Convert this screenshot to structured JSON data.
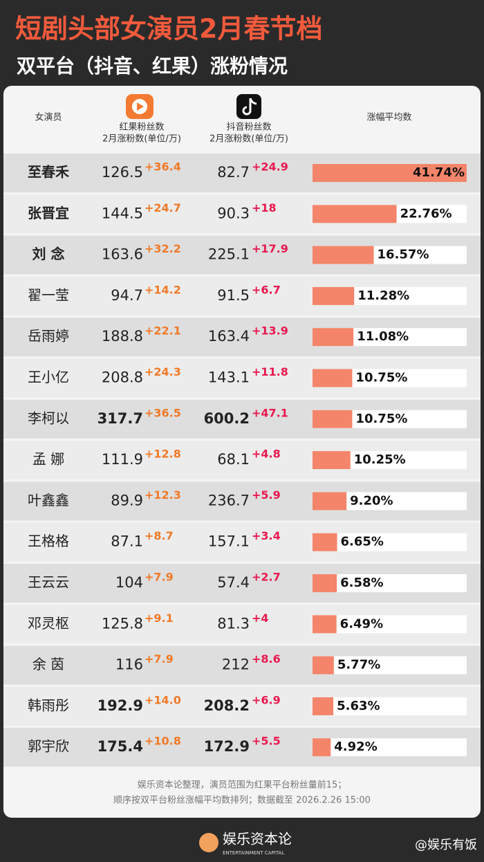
{
  "header": {
    "title": "短剧头部女演员2月春节档",
    "subtitle": "双平台（抖音、红果）涨粉情况"
  },
  "table": {
    "columns": [
      {
        "label": "女演员"
      },
      {
        "label": "红果粉丝数",
        "sub": "2月涨粉数(单位/万)"
      },
      {
        "label": "抖音粉丝数",
        "sub": "2月涨粉数(单位/万)"
      },
      {
        "label": "涨幅平均数"
      }
    ],
    "rows": [
      {
        "name": "至春禾",
        "hongguo": 126.5,
        "hongguo_gain": "+36.4",
        "douyin": 82.7,
        "douyin_gain": "+24.9",
        "avg": 41.74,
        "avg_label": "41.74%"
      },
      {
        "name": "张晋宜",
        "hongguo": 144.5,
        "hongguo_gain": "+24.7",
        "douyin": 90.3,
        "douyin_gain": "+18",
        "avg": 22.76,
        "avg_label": "22.76%"
      },
      {
        "name": "刘 念",
        "hongguo": 163.6,
        "hongguo_gain": "+32.2",
        "douyin": 225.1,
        "douyin_gain": "+17.9",
        "avg": 16.57,
        "avg_label": "16.57%"
      },
      {
        "name": "翟一莹",
        "hongguo": 94.7,
        "hongguo_gain": "+14.2",
        "douyin": 91.5,
        "douyin_gain": "+6.7",
        "avg": 11.28,
        "avg_label": "11.28%"
      },
      {
        "name": "岳雨婷",
        "hongguo": 188.8,
        "hongguo_gain": "+22.1",
        "douyin": 163.4,
        "douyin_gain": "+13.9",
        "avg": 11.08,
        "avg_label": "11.08%"
      },
      {
        "name": "王小亿",
        "hongguo": 208.8,
        "hongguo_gain": "+24.3",
        "douyin": 143.1,
        "douyin_gain": "+11.8",
        "avg": 10.75,
        "avg_label": "10.75%"
      },
      {
        "name": "李柯以",
        "hongguo": 317.7,
        "hongguo_gain": "+36.5",
        "douyin": 600.2,
        "douyin_gain": "+47.1",
        "avg": 10.75,
        "avg_label": "10.75%"
      },
      {
        "name": "孟 娜",
        "hongguo": 111.9,
        "hongguo_gain": "+12.8",
        "douyin": 68.1,
        "douyin_gain": "+4.8",
        "avg": 10.25,
        "avg_label": "10.25%"
      },
      {
        "name": "叶鑫鑫",
        "hongguo": 89.9,
        "hongguo_gain": "+12.3",
        "douyin": 236.7,
        "douyin_gain": "+5.9",
        "avg": 9.2,
        "avg_label": "9.20%"
      },
      {
        "name": "王格格",
        "hongguo": 87.1,
        "hongguo_gain": "+8.7",
        "douyin": 157.1,
        "douyin_gain": "+3.4",
        "avg": 6.65,
        "avg_label": "6.65%"
      },
      {
        "name": "王云云",
        "hongguo": 104,
        "hongguo_gain": "+7.9",
        "douyin": 57.4,
        "douyin_gain": "+2.7",
        "avg": 6.58,
        "avg_label": "6.58%"
      },
      {
        "name": "邓灵枢",
        "hongguo": 125.8,
        "hongguo_gain": "+9.1",
        "douyin": 81.3,
        "douyin_gain": "+4",
        "avg": 6.49,
        "avg_label": "6.49%"
      },
      {
        "name": "余 茵",
        "hongguo": 116,
        "hongguo_gain": "+7.9",
        "douyin": 212,
        "douyin_gain": "+8.6",
        "avg": 5.77,
        "avg_label": "5.77%"
      },
      {
        "name": "韩雨彤",
        "hongguo": 192.9,
        "hongguo_gain": "+14.0",
        "douyin": 208.2,
        "douyin_gain": "+6.9",
        "avg": 5.63,
        "avg_label": "5.63%"
      },
      {
        "name": "郭宇欣",
        "hongguo": 175.4,
        "hongguo_gain": "+10.8",
        "douyin": 172.9,
        "douyin_gain": "+5.5",
        "avg": 4.92,
        "avg_label": "4.92%"
      }
    ]
  },
  "footer": {
    "lines": [
      "娱乐资本论整理，演员范围为红果平台粉丝量前15；",
      "顺序按双平台粉丝涨幅平均数排列；数据截至 2026.2.26 15:00"
    ],
    "brand": "娱乐资本论",
    "brand_en": "ENTERTAINMENT CAPITAL",
    "handle": "@娱乐有饭"
  }
}
